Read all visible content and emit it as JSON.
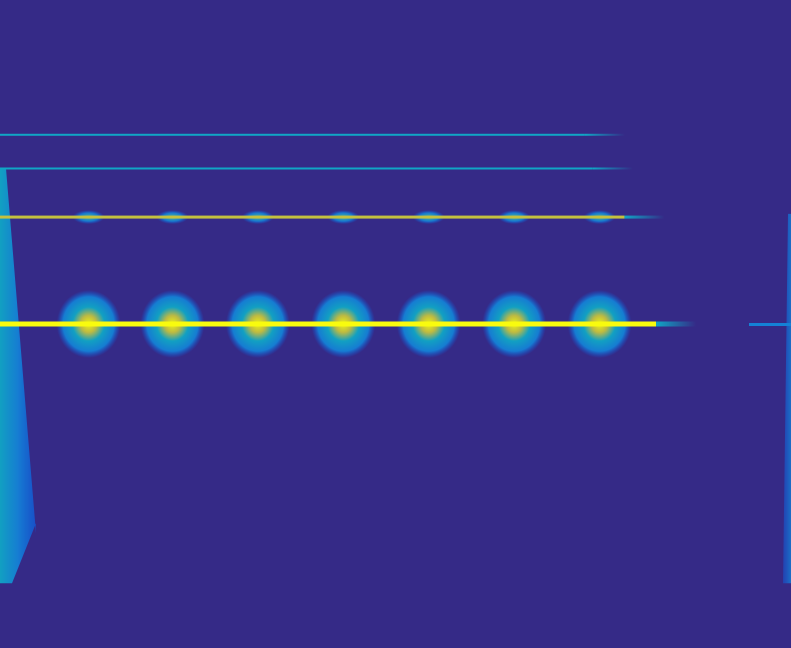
{
  "chart_data": {
    "type": "heatmap",
    "colormap": "parula",
    "colors": {
      "background": "#352a87",
      "low": "#0f5cdd",
      "mid_low": "#1481d6",
      "mid": "#10a6c5",
      "mid_high": "#4bc3a0",
      "high": "#c4c13f",
      "peak": "#f9fb0e"
    },
    "x_range": [
      0,
      1
    ],
    "y_range": [
      0,
      1
    ],
    "grid": false,
    "legend": "none",
    "harmonic_lines": [
      {
        "y": 0.208,
        "intensity": 0.45,
        "x_end": 0.79
      },
      {
        "y": 0.26,
        "intensity": 0.55,
        "x_end": 0.8
      },
      {
        "y": 0.335,
        "intensity": 0.85,
        "x_end": 0.84
      },
      {
        "y": 0.5,
        "intensity": 1.0,
        "x_end": 0.88
      }
    ],
    "bursts": [
      {
        "x": 0.112,
        "y": 0.5,
        "intensity": 0.9
      },
      {
        "x": 0.218,
        "y": 0.5,
        "intensity": 0.9
      },
      {
        "x": 0.326,
        "y": 0.5,
        "intensity": 0.9
      },
      {
        "x": 0.434,
        "y": 0.5,
        "intensity": 0.9
      },
      {
        "x": 0.542,
        "y": 0.5,
        "intensity": 0.9
      },
      {
        "x": 0.65,
        "y": 0.5,
        "intensity": 0.9
      },
      {
        "x": 0.758,
        "y": 0.5,
        "intensity": 0.85
      },
      {
        "x": 0.112,
        "y": 0.335,
        "intensity": 0.4
      },
      {
        "x": 0.218,
        "y": 0.335,
        "intensity": 0.4
      },
      {
        "x": 0.326,
        "y": 0.335,
        "intensity": 0.4
      },
      {
        "x": 0.434,
        "y": 0.335,
        "intensity": 0.4
      },
      {
        "x": 0.542,
        "y": 0.335,
        "intensity": 0.4
      },
      {
        "x": 0.65,
        "y": 0.335,
        "intensity": 0.4
      },
      {
        "x": 0.758,
        "y": 0.335,
        "intensity": 0.35
      }
    ],
    "edge_bands": [
      {
        "side": "left",
        "y_start": 0.26,
        "y_end": 0.9,
        "intensity": 0.7
      },
      {
        "side": "right",
        "y_start": 0.33,
        "y_end": 0.9,
        "intensity": 0.5
      }
    ],
    "title": "",
    "xlabel": "",
    "ylabel": ""
  }
}
